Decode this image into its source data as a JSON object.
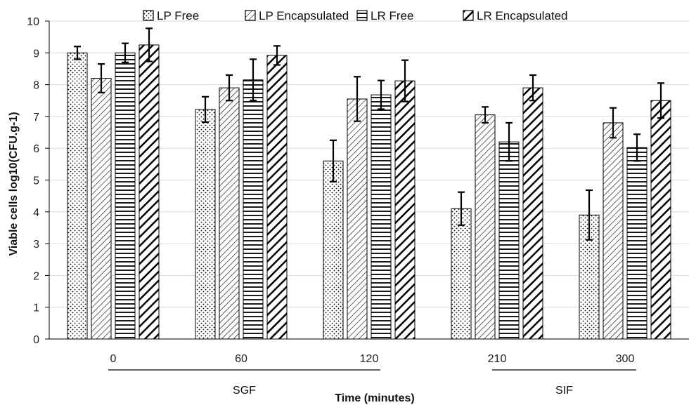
{
  "chart_data": {
    "type": "bar",
    "categories": [
      "0",
      "60",
      "120",
      "210",
      "300"
    ],
    "series": [
      {
        "name": "LP Free",
        "pattern": "dots",
        "values": [
          9.0,
          7.22,
          5.6,
          4.1,
          3.9
        ],
        "errors": [
          0.2,
          0.4,
          0.65,
          0.52,
          0.78
        ]
      },
      {
        "name": "LP Encapsulated",
        "pattern": "diag-thin",
        "values": [
          8.2,
          7.9,
          7.55,
          7.05,
          6.8
        ],
        "errors": [
          0.45,
          0.4,
          0.7,
          0.25,
          0.47
        ]
      },
      {
        "name": "LR Free",
        "pattern": "horizontal",
        "values": [
          9.0,
          8.15,
          7.68,
          6.2,
          6.02
        ],
        "errors": [
          0.3,
          0.65,
          0.45,
          0.6,
          0.42
        ]
      },
      {
        "name": "LR Encapsulated",
        "pattern": "diag-thick",
        "values": [
          9.25,
          8.92,
          8.12,
          7.9,
          7.5
        ],
        "errors": [
          0.52,
          0.3,
          0.65,
          0.4,
          0.55
        ]
      }
    ],
    "ylabel": "Viable cells log10(CFU.g-1)",
    "xlabel": "Time (minutes)",
    "ylim": [
      0,
      10
    ],
    "yticks": [
      "0",
      "1",
      "2",
      "3",
      "4",
      "5",
      "6",
      "7",
      "8",
      "9",
      "10"
    ],
    "grid": true,
    "legend_position": "top",
    "groups": [
      {
        "label": "SGF",
        "categories": [
          "0",
          "60",
          "120"
        ]
      },
      {
        "label": "SIF",
        "categories": [
          "210",
          "300"
        ]
      }
    ],
    "colors": {
      "bar_fill": "#ffffff",
      "bar_stroke": "#000000",
      "grid": "#d9d9d9",
      "axis": "#000000"
    }
  }
}
